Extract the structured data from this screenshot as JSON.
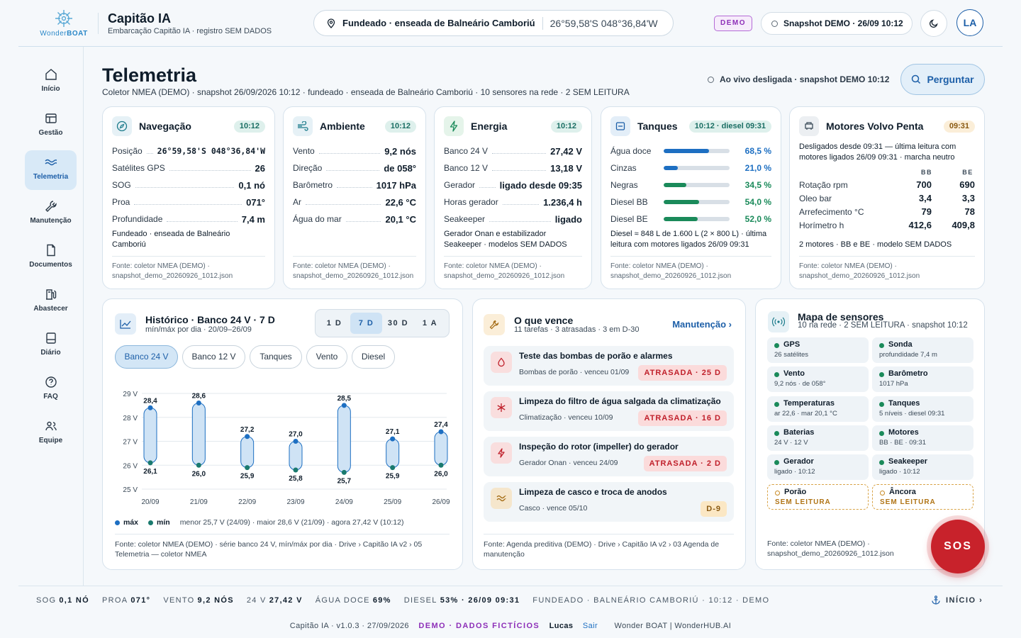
{
  "brand": {
    "logo_text_a": "Wonder",
    "logo_text_b": "BOAT",
    "app_title": "Capitão IA",
    "app_subtitle": "Embarcação Capitão IA · registro SEM DADOS"
  },
  "header": {
    "location": "Fundeado · enseada de Balneário Camboriú",
    "coords": "26°59,58'S 048°36,84'W",
    "demo_badge": "DEMO",
    "snapshot": "Snapshot DEMO · 26/09 10:12",
    "avatar": "LA"
  },
  "nav": [
    {
      "label": "Início",
      "icon": "home-icon"
    },
    {
      "label": "Gestão",
      "icon": "table-icon"
    },
    {
      "label": "Telemetria",
      "icon": "waves-icon",
      "active": true
    },
    {
      "label": "Manutenção",
      "icon": "wrench-icon"
    },
    {
      "label": "Documentos",
      "icon": "document-icon"
    },
    {
      "label": "Abastecer",
      "icon": "fuel-icon"
    },
    {
      "label": "Diário",
      "icon": "journal-icon"
    },
    {
      "label": "FAQ",
      "icon": "help-icon"
    },
    {
      "label": "Equipe",
      "icon": "team-icon"
    }
  ],
  "page": {
    "title": "Telemetria",
    "subtitle": "Coletor NMEA (DEMO) · snapshot 26/09/2026 10:12 · fundeado · enseada de Balneário Camboriú · 10 sensores na rede · 2 SEM LEITURA",
    "live_status": "Ao vivo desligada · snapshot DEMO 10:12",
    "ask_label": "Perguntar"
  },
  "nav_card": {
    "title": "Navegação",
    "time": "10:12",
    "rows": [
      {
        "k": "Posição",
        "v": "26°59,58'S 048°36,84'W"
      },
      {
        "k": "Satélites GPS",
        "v": "26"
      },
      {
        "k": "SOG",
        "v": "0,1 nó"
      },
      {
        "k": "Proa",
        "v": "071°"
      },
      {
        "k": "Profundidade",
        "v": "7,4 m"
      }
    ],
    "note": "Fundeado · enseada de Balneário Camboriú",
    "source": "Fonte: coletor NMEA (DEMO) · snapshot_demo_20260926_1012.json"
  },
  "env_card": {
    "title": "Ambiente",
    "time": "10:12",
    "rows": [
      {
        "k": "Vento",
        "v": "9,2 nós"
      },
      {
        "k": "Direção",
        "v": "de 058°"
      },
      {
        "k": "Barômetro",
        "v": "1017 hPa"
      },
      {
        "k": "Ar",
        "v": "22,6 °C"
      },
      {
        "k": "Água do mar",
        "v": "20,1 °C"
      }
    ],
    "source": "Fonte: coletor NMEA (DEMO) · snapshot_demo_20260926_1012.json"
  },
  "energy_card": {
    "title": "Energia",
    "time": "10:12",
    "rows": [
      {
        "k": "Banco 24 V",
        "v": "27,42 V"
      },
      {
        "k": "Banco 12 V",
        "v": "13,18 V"
      },
      {
        "k": "Gerador",
        "v": "ligado desde 09:35"
      },
      {
        "k": "Horas gerador",
        "v": "1.236,4 h"
      },
      {
        "k": "Seakeeper",
        "v": "ligado"
      }
    ],
    "note": "Gerador Onan e estabilizador Seakeeper · modelos SEM DADOS",
    "source": "Fonte: coletor NMEA (DEMO) · snapshot_demo_20260926_1012.json"
  },
  "tanks_card": {
    "title": "Tanques",
    "time": "10:12 · diesel 09:31",
    "rows": [
      {
        "k": "Água doce",
        "v": "68,5 %",
        "level": 0.685,
        "color": "#1d6fc2"
      },
      {
        "k": "Cinzas",
        "v": "21,0 %",
        "level": 0.21,
        "color": "#1d6fc2"
      },
      {
        "k": "Negras",
        "v": "34,5 %",
        "level": 0.345,
        "color": "#1a8a5a"
      },
      {
        "k": "Diesel BB",
        "v": "54,0 %",
        "level": 0.54,
        "color": "#1a8a5a"
      },
      {
        "k": "Diesel BE",
        "v": "52,0 %",
        "level": 0.52,
        "color": "#1a8a5a"
      }
    ],
    "note": "Diesel ≈ 848 L de 1.600 L (2 × 800 L) · última leitura com motores ligados 26/09 09:31",
    "source": "Fonte: coletor NMEA (DEMO) · snapshot_demo_20260926_1012.json"
  },
  "engines_card": {
    "title": "Motores Volvo Penta",
    "time": "09:31",
    "status": "Desligados desde 09:31 — última leitura com motores ligados 26/09 09:31 · marcha neutro",
    "col_bb": "BB",
    "col_be": "BE",
    "rows": [
      {
        "k": "Rotação rpm",
        "bb": "700",
        "be": "690"
      },
      {
        "k": "Oleo bar",
        "bb": "3,4",
        "be": "3,3"
      },
      {
        "k": "Arrefecimento °C",
        "bb": "79",
        "be": "78"
      },
      {
        "k": "Horímetro h",
        "bb": "412,6",
        "be": "409,8"
      }
    ],
    "note": "2 motores · BB e BE · modelo SEM DADOS",
    "source": "Fonte: coletor NMEA (DEMO) · snapshot_demo_20260926_1012.json"
  },
  "history": {
    "title": "Histórico · Banco 24 V · 7 D",
    "subtitle": "mín/máx por dia · 20/09–26/09",
    "ranges": [
      "1 D",
      "7 D",
      "30 D",
      "1 A"
    ],
    "active_range": "7 D",
    "series_tabs": [
      "Banco 24 V",
      "Banco 12 V",
      "Tanques",
      "Vento",
      "Diesel"
    ],
    "legend_max": "máx",
    "legend_min": "mín",
    "stats": "menor 25,7 V (24/09) · maior 28,6 V (21/09) · agora 27,42 V (10:12)",
    "source": "Fonte: coletor NMEA (DEMO) · série banco 24 V, mín/máx por dia · Drive › Capitão IA v2 › 05 Telemetria — coletor NMEA"
  },
  "chart_data": {
    "type": "range-bar",
    "categories": [
      "20/09",
      "21/09",
      "22/09",
      "23/09",
      "24/09",
      "25/09",
      "26/09"
    ],
    "series": [
      {
        "name": "máx",
        "values": [
          28.4,
          28.6,
          27.2,
          27.0,
          28.5,
          27.1,
          27.4
        ],
        "labels": [
          "28,4",
          "28,6",
          "27,2",
          "27,0",
          "28,5",
          "27,1",
          "27,4"
        ]
      },
      {
        "name": "mín",
        "values": [
          26.1,
          26.0,
          25.9,
          25.8,
          25.7,
          25.9,
          26.0
        ],
        "labels": [
          "26,1",
          "26,0",
          "25,9",
          "25,8",
          "25,7",
          "25,9",
          "26,0"
        ]
      }
    ],
    "yticks": [
      "29 V",
      "28 V",
      "27 V",
      "26 V",
      "25 V"
    ],
    "ylim": [
      25,
      29
    ],
    "grid": true,
    "colors": {
      "max": "#1d6fc2",
      "min": "#1a7a6e",
      "fill": "#cfe3f5"
    }
  },
  "tasks": {
    "title": "O que vence",
    "subtitle": "11 tarefas · 3 atrasadas · 3 em D-30",
    "link": "Manutenção ›",
    "items": [
      {
        "title": "Teste das bombas de porão e alarmes",
        "sub": "Bombas de porão · venceu 01/09",
        "badge": "ATRASADA · 25 D",
        "tone": "red",
        "icon": "drop-icon"
      },
      {
        "title": "Limpeza do filtro de água salgada da climatização",
        "sub": "Climatização · venceu 10/09",
        "badge": "ATRASADA · 16 D",
        "tone": "red",
        "icon": "snowflake-icon"
      },
      {
        "title": "Inspeção do rotor (impeller) do gerador",
        "sub": "Gerador Onan · venceu 24/09",
        "badge": "ATRASADA · 2 D",
        "tone": "red",
        "icon": "bolt-icon"
      },
      {
        "title": "Limpeza de casco e troca de anodos",
        "sub": "Casco · vence 05/10",
        "badge": "D-9",
        "tone": "amb",
        "icon": "waves-icon"
      }
    ],
    "source": "Fonte: Agenda preditiva (DEMO) · Drive › Capitão IA v2 › 03 Agenda de manutenção"
  },
  "sensors": {
    "title": "Mapa de sensores",
    "subtitle": "10 na rede · 2 SEM LEITURA · snapshot 10:12",
    "items": [
      {
        "name": "GPS",
        "value": "26 satélites"
      },
      {
        "name": "Sonda",
        "value": "profundidade 7,4 m"
      },
      {
        "name": "Vento",
        "value": "9,2 nós · de 058°"
      },
      {
        "name": "Barômetro",
        "value": "1017 hPa"
      },
      {
        "name": "Temperaturas",
        "value": "ar 22,6 · mar 20,1 °C"
      },
      {
        "name": "Tanques",
        "value": "5 níveis · diesel 09:31"
      },
      {
        "name": "Baterias",
        "value": "24 V · 12 V"
      },
      {
        "name": "Motores",
        "value": "BB · BE · 09:31"
      },
      {
        "name": "Gerador",
        "value": "ligado · 10:12"
      },
      {
        "name": "Seakeeper",
        "value": "ligado · 10:12"
      },
      {
        "name": "Porão",
        "value": "SEM LEITURA",
        "missing": true
      },
      {
        "name": "Âncora",
        "value": "SEM LEITURA",
        "missing": true
      }
    ],
    "source": "Fonte: coletor NMEA (DEMO) · snapshot_demo_20260926_1012.json",
    "sos": "SOS"
  },
  "ticker": {
    "items": [
      {
        "k": "SOG",
        "v": "0,1 NÓ"
      },
      {
        "k": "PROA",
        "v": "071°"
      },
      {
        "k": "VENTO",
        "v": "9,2 NÓS"
      },
      {
        "k": "24 V",
        "v": "27,42 V"
      },
      {
        "k": "ÁGUA DOCE",
        "v": "69%"
      },
      {
        "k": "DIESEL",
        "v": "53% · 26/09 09:31"
      }
    ],
    "tail": "FUNDEADO · BALNEÁRIO CAMBORIÚ · 10:12 · DEMO",
    "home": "INÍCIO ›"
  },
  "footer": {
    "version": "Capitão IA · v1.0.3 · 27/09/2026",
    "demo": "DEMO · DADOS FICTÍCIOS",
    "user": "Lucas",
    "logout": "Sair",
    "credits": "Wonder BOAT | WonderHUB.AI"
  }
}
